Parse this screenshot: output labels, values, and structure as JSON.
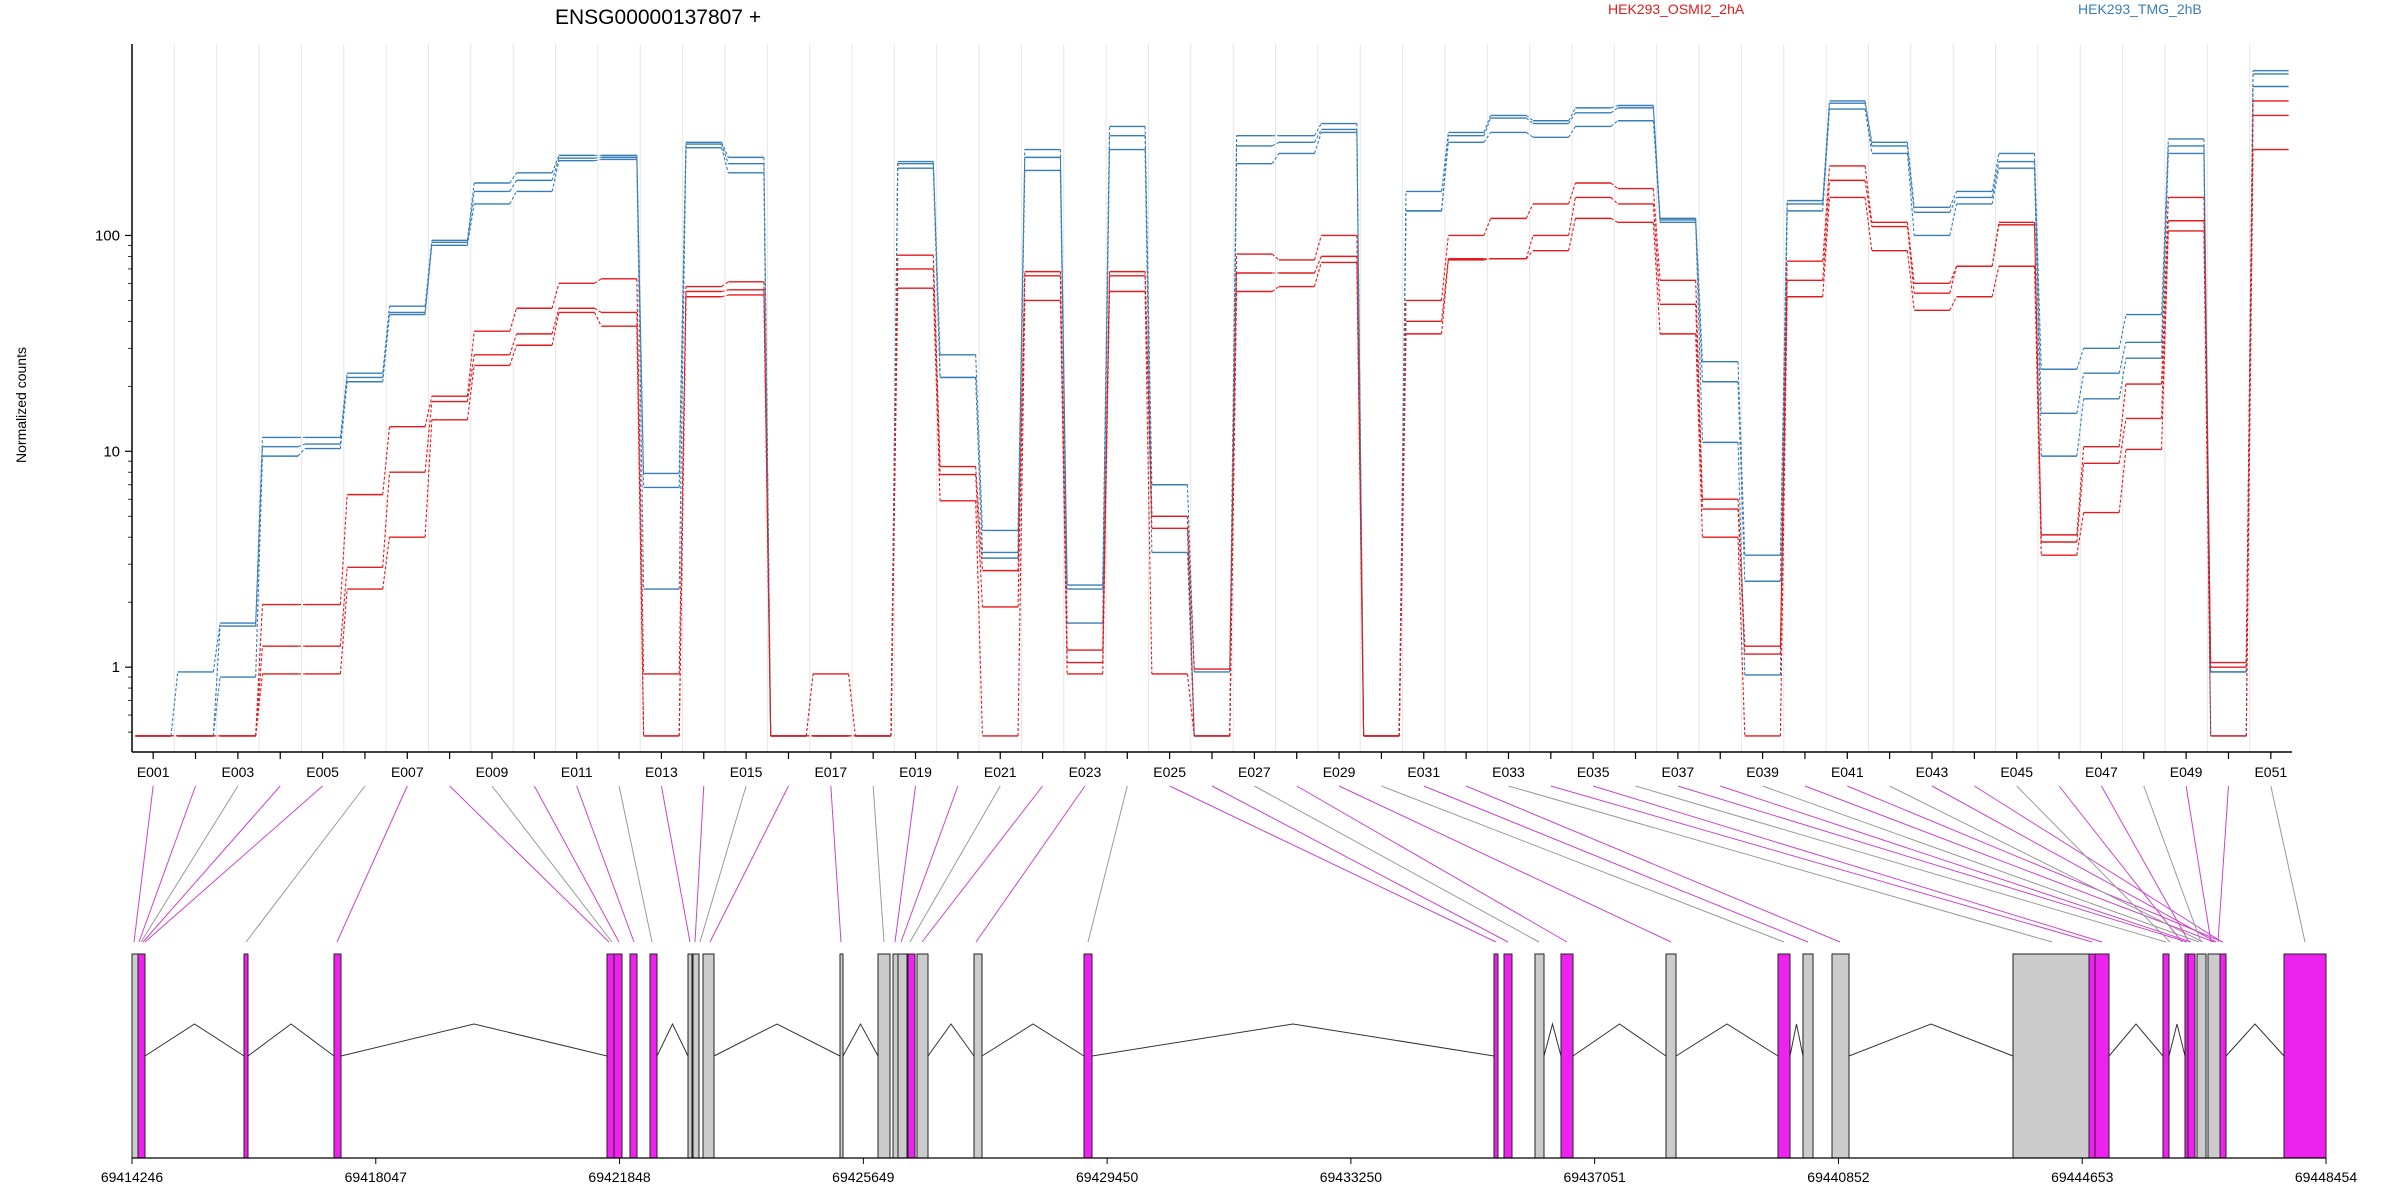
{
  "chart_data": {
    "type": "line",
    "title": "ENSG00000137807 +",
    "ylabel": "Normalized counts",
    "yscale": "log",
    "ylim": [
      0.45,
      650
    ],
    "y_ticks": [
      1,
      10,
      100
    ],
    "y_tick_labels": [
      "1",
      "10",
      "100"
    ],
    "categories": [
      "E001",
      "E002",
      "E003",
      "E004",
      "E005",
      "E006",
      "E007",
      "E008",
      "E009",
      "E010",
      "E011",
      "E012",
      "E013",
      "E014",
      "E015",
      "E016",
      "E017",
      "E018",
      "E019",
      "E020",
      "E021",
      "E022",
      "E023",
      "E024",
      "E025",
      "E026",
      "E027",
      "E028",
      "E029",
      "E030",
      "E031",
      "E032",
      "E033",
      "E034",
      "E035",
      "E036",
      "E037",
      "E038",
      "E039",
      "E040",
      "E041",
      "E042",
      "E043",
      "E044",
      "E045",
      "E046",
      "E047",
      "E048",
      "E049",
      "E050",
      "E051"
    ],
    "x_tick_labels": [
      "E001",
      "E003",
      "E005",
      "E007",
      "E009",
      "E011",
      "E013",
      "E015",
      "E017",
      "E019",
      "E021",
      "E023",
      "E025",
      "E027",
      "E029",
      "E031",
      "E033",
      "E035",
      "E037",
      "E039",
      "E041",
      "E043",
      "E045",
      "E047",
      "E049",
      "E051"
    ],
    "legend": [
      "HEK293_OSMI2_2hA",
      "HEK293_TMG_2hB"
    ],
    "colors": {
      "OSMI2": "#e41a1c",
      "TMG": "#377eb8",
      "exon_used": "#ee22ee",
      "exon_other": "#cccccc",
      "grid": "#e6e6e6"
    },
    "series": [
      {
        "condition": "TMG",
        "values": [
          0.48,
          0.95,
          1.6,
          11.6,
          11.6,
          23,
          47,
          95,
          175,
          195,
          235,
          235,
          7.9,
          270,
          230,
          0.48,
          0.48,
          0.48,
          220,
          28,
          4.3,
          250,
          2.4,
          320,
          7,
          0.95,
          290,
          290,
          330,
          0.48,
          160,
          300,
          360,
          340,
          390,
          400,
          120,
          26,
          3.3,
          145,
          420,
          270,
          135,
          160,
          240,
          24,
          30,
          43,
          280,
          0.95,
          580
        ]
      },
      {
        "condition": "TMG",
        "values": [
          0.48,
          0.48,
          1.55,
          10.5,
          10.8,
          22,
          44,
          93,
          160,
          180,
          228,
          230,
          6.8,
          265,
          215,
          0.48,
          0.48,
          0.48,
          215,
          22,
          3.4,
          230,
          2.3,
          290,
          5,
          0.48,
          260,
          270,
          310,
          0.48,
          130,
          290,
          350,
          330,
          370,
          390,
          118,
          21,
          2.5,
          140,
          410,
          260,
          128,
          150,
          220,
          15,
          23,
          32,
          260,
          0.95,
          560
        ]
      },
      {
        "condition": "TMG",
        "values": [
          0.48,
          0.48,
          0.9,
          9.5,
          10.3,
          21,
          43,
          90,
          140,
          160,
          222,
          225,
          2.3,
          255,
          195,
          0.48,
          0.48,
          0.48,
          205,
          22,
          3.2,
          200,
          1.6,
          250,
          3.4,
          0.48,
          215,
          240,
          300,
          0.48,
          130,
          270,
          300,
          285,
          320,
          340,
          115,
          11,
          0.92,
          130,
          385,
          240,
          100,
          140,
          205,
          9.5,
          17.5,
          27,
          240,
          0.48,
          490
        ]
      },
      {
        "condition": "OSMI2",
        "values": [
          0.48,
          0.48,
          0.48,
          1.95,
          1.95,
          6.3,
          13,
          18,
          36,
          46,
          60,
          63,
          0.93,
          58,
          61,
          0.48,
          0.93,
          0.48,
          81,
          8.5,
          2.8,
          68,
          1.2,
          68,
          5,
          0.98,
          82,
          77,
          100,
          0.48,
          50,
          100,
          120,
          140,
          175,
          165,
          62,
          6,
          1.25,
          76,
          210,
          115,
          60,
          72,
          115,
          4.1,
          10.5,
          20.5,
          150,
          1.05,
          420
        ]
      },
      {
        "condition": "OSMI2",
        "values": [
          0.48,
          0.48,
          0.48,
          1.25,
          1.25,
          2.9,
          8,
          17,
          28,
          35,
          46,
          44,
          0.48,
          55,
          56,
          0.48,
          0.48,
          0.48,
          70,
          7.8,
          1.9,
          65,
          1.05,
          65,
          4.4,
          0.48,
          67,
          67,
          80,
          0.48,
          40,
          78,
          78,
          100,
          150,
          140,
          48,
          5.4,
          1.15,
          62,
          180,
          110,
          54,
          72,
          112,
          3.8,
          8.8,
          14.2,
          117,
          1.0,
          360
        ]
      },
      {
        "condition": "OSMI2",
        "values": [
          0.48,
          0.48,
          0.48,
          0.93,
          0.93,
          2.3,
          4,
          14,
          25,
          31,
          44,
          38,
          0.48,
          52,
          53,
          0.48,
          0.48,
          0.48,
          57,
          5.9,
          0.48,
          50,
          0.93,
          55,
          0.93,
          0.48,
          55,
          58,
          75,
          0.48,
          35,
          77,
          78,
          85,
          120,
          115,
          35,
          4,
          0.48,
          52,
          150,
          85,
          45,
          52,
          72,
          3.3,
          5.2,
          10.2,
          105,
          0.48,
          250
        ]
      }
    ],
    "gene_axis": {
      "tick_labels": [
        "69414246",
        "69418047",
        "69421848",
        "69425649",
        "69429450",
        "69433250",
        "69437051",
        "69440852",
        "69444653",
        "69448454"
      ]
    }
  }
}
